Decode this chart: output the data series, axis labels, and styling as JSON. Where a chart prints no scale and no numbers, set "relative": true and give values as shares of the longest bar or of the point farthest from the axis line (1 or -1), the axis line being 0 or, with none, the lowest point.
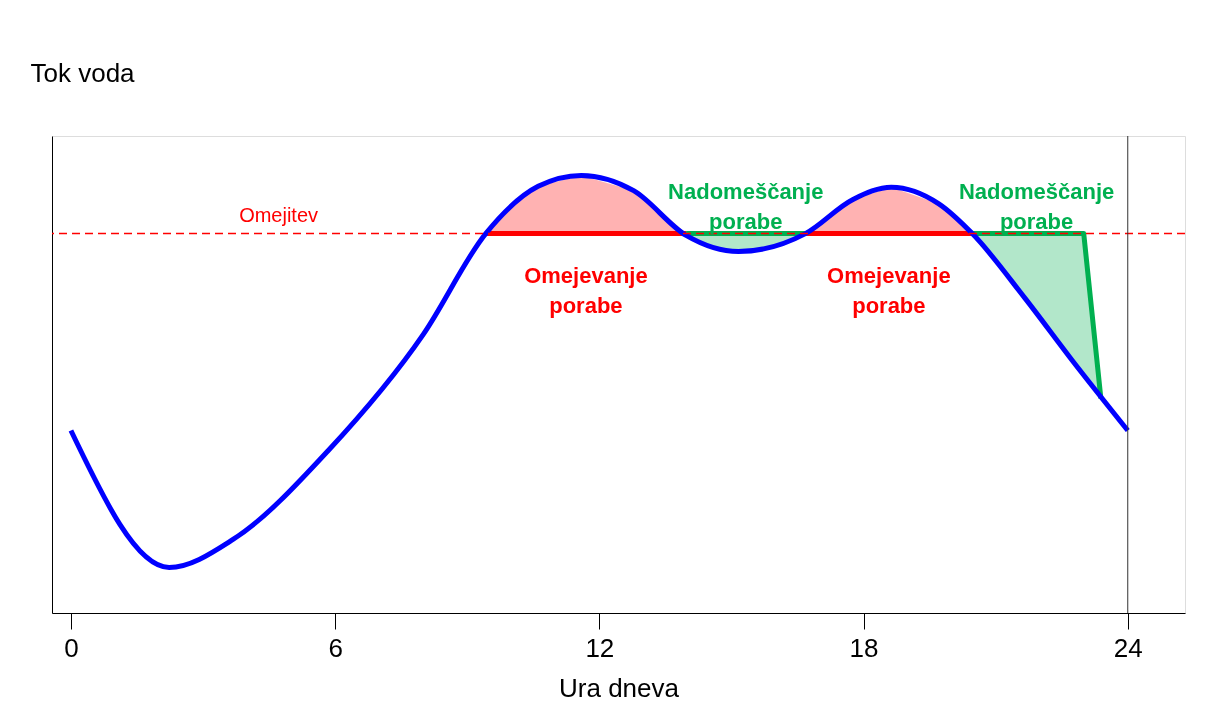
{
  "chart_data": {
    "type": "line",
    "relative": true,
    "xlabel": "Ura dneva",
    "ylabel": "Tok voda",
    "xlim": [
      -0.43,
      25.3
    ],
    "xticks": [
      0,
      6,
      12,
      18,
      24
    ],
    "grid": false,
    "marker": "none",
    "series": [
      {
        "type": "area",
        "color": "#ff0000",
        "x": [
          9.42,
          10.0,
          10.61,
          11.59,
          12.78,
          13.5,
          13.97
        ],
        "values": [
          0.867,
          0.93,
          0.975,
          1.0,
          0.965,
          0.91,
          0.867
        ]
      },
      {
        "type": "area",
        "color": "#00b050",
        "x": [
          13.97,
          14.5,
          15.16,
          16.0,
          16.68
        ],
        "values": [
          0.867,
          0.838,
          0.826,
          0.84,
          0.867
        ]
      },
      {
        "type": "area",
        "color": "#ff0000",
        "x": [
          16.68,
          17.2,
          17.76,
          18.63,
          19.71,
          20.1,
          20.47
        ],
        "values": [
          0.867,
          0.91,
          0.945,
          0.973,
          0.935,
          0.905,
          0.867
        ]
      },
      {
        "type": "area",
        "color": "#00b050",
        "x": [
          23.0,
          23.39,
          22.74,
          22.2,
          21.66,
          21.0,
          20.47
        ],
        "values": [
          0.867,
          0.49,
          0.577,
          0.65,
          0.72,
          0.8,
          0.867
        ]
      },
      {
        "color": "#0000ff",
        "x": [
          0,
          2.23,
          3.68,
          5.85,
          8.01,
          9.42,
          10.61,
          11.59,
          12.78,
          13.97,
          15.16,
          16.68,
          17.76,
          18.63,
          19.71,
          20.47,
          21.66,
          22.74,
          24
        ],
        "values": [
          0.417,
          0.104,
          0.168,
          0.372,
          0.638,
          0.867,
          0.975,
          1.0,
          0.965,
          0.863,
          0.826,
          0.867,
          0.945,
          0.973,
          0.935,
          0.867,
          0.72,
          0.577,
          0.417
        ]
      }
    ],
    "ref_lines": [
      {
        "axis": "y",
        "value": 0.867,
        "label": "Omejitev",
        "color": "#ff0000",
        "line_style": "dashed"
      },
      {
        "axis": "x",
        "value": 24,
        "label": null,
        "color": "#333333",
        "line_style": "solid"
      }
    ],
    "annotations": [
      "Omejevanje\nporabe",
      "Nadomeščanje\nporabe",
      "Omejevanje\nporabe",
      "Nadomeščanje\nporabe"
    ]
  }
}
